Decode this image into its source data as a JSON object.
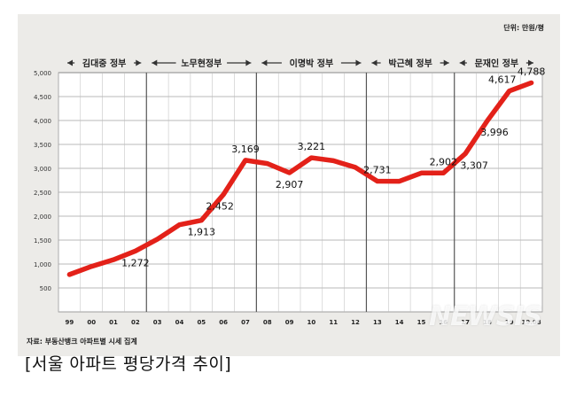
{
  "chart_data": {
    "type": "line",
    "unit_label": "단위: 만원/평",
    "x": [
      "99",
      "00",
      "01",
      "02",
      "03",
      "04",
      "05",
      "06",
      "07",
      "08",
      "09",
      "10",
      "11",
      "12",
      "13",
      "14",
      "15",
      "16",
      "17",
      "18",
      "19",
      "19.08"
    ],
    "ylim": [
      0,
      5000
    ],
    "yticks": [
      "500",
      "1,000",
      "1,500",
      "2,000",
      "2,500",
      "3,000",
      "3,500",
      "4,000",
      "4,500",
      "5,000"
    ],
    "grid": true,
    "series": [
      {
        "color": "#e32119",
        "values": [
          780,
          950,
          1090,
          1272,
          1520,
          1820,
          1913,
          2452,
          3169,
          3100,
          2907,
          3221,
          3160,
          3020,
          2731,
          2730,
          2902,
          2902,
          3307,
          3996,
          4617,
          4788
        ]
      }
    ],
    "data_labels": [
      {
        "index": 3,
        "text": "1,272"
      },
      {
        "index": 6,
        "text": "1,913"
      },
      {
        "index": 7,
        "text": "2,452"
      },
      {
        "index": 8,
        "text": "3,169"
      },
      {
        "index": 10,
        "text": "2,907"
      },
      {
        "index": 11,
        "text": "3,221"
      },
      {
        "index": 14,
        "text": "2,731"
      },
      {
        "index": 17,
        "text": "2,902"
      },
      {
        "index": 18,
        "text": "3,307"
      },
      {
        "index": 19,
        "text": "3,996"
      },
      {
        "index": 20,
        "text": "4,617"
      },
      {
        "index": 21,
        "text": "4,788"
      }
    ],
    "periods": [
      {
        "label": "김대중 정부",
        "start": 0,
        "end": 4
      },
      {
        "label": "노무현정부",
        "start": 4,
        "end": 9
      },
      {
        "label": "이명박 정부",
        "start": 9,
        "end": 14
      },
      {
        "label": "박근혜 정부",
        "start": 14,
        "end": 18
      },
      {
        "label": "문재인 정부",
        "start": 18,
        "end": 22
      }
    ],
    "source": "자료: 부동산뱅크 아파트별 시세 집계"
  },
  "caption": "[서울 아파트 평당가격 추이]",
  "watermark": "NEWSIS",
  "colors": {
    "background": "#ecebe8",
    "plot_background": "#ffffff",
    "line": "#e32119",
    "period_band": "#2b2b2b"
  }
}
